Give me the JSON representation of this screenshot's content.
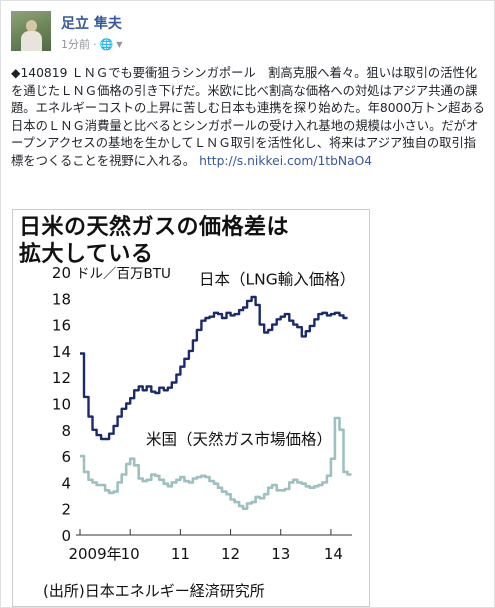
{
  "post": {
    "author": "足立 隼夫",
    "time": "1分前",
    "privacy_icon": "globe-icon",
    "text_main": "◆140819 ＬＮＧでも要衝狙うシンガポール　割高克服へ着々。狙いは取引の活性化を通じたＬＮＧ価格の引き下げだ。米欧に比べ割高な価格への対処はアジア共通の課題。エネルギーコストの上昇に苦しむ日本も連携を探り始めた。年8000万トン超ある日本のＬＮＧ消費量と比べるとシンガポールの受け入れ基地の規模は小さい。だがオープンアクセスの基地を生かしてＬＮＧ取引を活性化し、将来はアジア独自の取引指標をつくることを視野に入れる。",
    "link": "http://s.nikkei.com/1tbNaO4"
  },
  "chart_data": {
    "type": "line",
    "title": "日米の天然ガスの価格差は拡大している",
    "title_line1": "日米の天然ガスの価格差は",
    "title_line2": "拡大している",
    "ylabel": "ドル／百万BTU",
    "ylim": [
      0,
      20
    ],
    "yticks": [
      "0",
      "2",
      "4",
      "6",
      "8",
      "10",
      "12",
      "14",
      "16",
      "18",
      "20"
    ],
    "xticks": [
      "2009年",
      "10",
      "11",
      "12",
      "13",
      "14"
    ],
    "source": "(出所)日本エネルギー経済研究所",
    "grid": false,
    "series": [
      {
        "name": "日本（LNG輸入価格）",
        "color": "#1a2a6c",
        "points": [
          [
            2009.0,
            13.8
          ],
          [
            2009.08,
            10.5
          ],
          [
            2009.17,
            9.0
          ],
          [
            2009.25,
            8.0
          ],
          [
            2009.33,
            7.6
          ],
          [
            2009.42,
            7.3
          ],
          [
            2009.5,
            7.3
          ],
          [
            2009.58,
            7.7
          ],
          [
            2009.67,
            8.3
          ],
          [
            2009.75,
            9.0
          ],
          [
            2009.83,
            9.6
          ],
          [
            2009.92,
            10.0
          ],
          [
            2010.0,
            10.4
          ],
          [
            2010.08,
            11.0
          ],
          [
            2010.17,
            11.3
          ],
          [
            2010.25,
            11.0
          ],
          [
            2010.33,
            11.3
          ],
          [
            2010.42,
            10.9
          ],
          [
            2010.5,
            10.8
          ],
          [
            2010.58,
            11.2
          ],
          [
            2010.67,
            11.0
          ],
          [
            2010.75,
            11.2
          ],
          [
            2010.83,
            11.6
          ],
          [
            2010.92,
            12.2
          ],
          [
            2011.0,
            12.8
          ],
          [
            2011.08,
            13.4
          ],
          [
            2011.17,
            14.0
          ],
          [
            2011.25,
            14.8
          ],
          [
            2011.33,
            15.6
          ],
          [
            2011.42,
            16.3
          ],
          [
            2011.5,
            16.5
          ],
          [
            2011.58,
            16.6
          ],
          [
            2011.67,
            16.9
          ],
          [
            2011.75,
            16.8
          ],
          [
            2011.83,
            16.5
          ],
          [
            2011.92,
            16.9
          ],
          [
            2012.0,
            16.7
          ],
          [
            2012.08,
            16.8
          ],
          [
            2012.17,
            17.1
          ],
          [
            2012.25,
            17.3
          ],
          [
            2012.33,
            17.8
          ],
          [
            2012.42,
            18.1
          ],
          [
            2012.5,
            17.5
          ],
          [
            2012.58,
            16.0
          ],
          [
            2012.67,
            15.4
          ],
          [
            2012.75,
            15.6
          ],
          [
            2012.83,
            16.0
          ],
          [
            2012.92,
            16.4
          ],
          [
            2013.0,
            16.6
          ],
          [
            2013.08,
            16.8
          ],
          [
            2013.17,
            16.3
          ],
          [
            2013.25,
            16.0
          ],
          [
            2013.33,
            15.8
          ],
          [
            2013.42,
            15.1
          ],
          [
            2013.5,
            15.5
          ],
          [
            2013.58,
            15.9
          ],
          [
            2013.67,
            16.4
          ],
          [
            2013.75,
            16.8
          ],
          [
            2013.83,
            16.9
          ],
          [
            2013.92,
            16.7
          ],
          [
            2014.0,
            16.8
          ],
          [
            2014.08,
            16.9
          ],
          [
            2014.17,
            16.7
          ],
          [
            2014.25,
            16.5
          ]
        ]
      },
      {
        "name": "米国（天然ガス市場価格）",
        "color": "#9dc0c0",
        "points": [
          [
            2009.0,
            6.0
          ],
          [
            2009.08,
            4.8
          ],
          [
            2009.17,
            4.2
          ],
          [
            2009.25,
            4.0
          ],
          [
            2009.33,
            3.8
          ],
          [
            2009.42,
            3.8
          ],
          [
            2009.5,
            3.4
          ],
          [
            2009.58,
            3.2
          ],
          [
            2009.67,
            3.3
          ],
          [
            2009.75,
            4.0
          ],
          [
            2009.83,
            4.6
          ],
          [
            2009.92,
            5.4
          ],
          [
            2010.0,
            5.8
          ],
          [
            2010.08,
            5.3
          ],
          [
            2010.17,
            4.3
          ],
          [
            2010.25,
            4.1
          ],
          [
            2010.33,
            4.2
          ],
          [
            2010.42,
            4.6
          ],
          [
            2010.5,
            4.5
          ],
          [
            2010.58,
            4.2
          ],
          [
            2010.67,
            3.9
          ],
          [
            2010.75,
            3.7
          ],
          [
            2010.83,
            4.0
          ],
          [
            2010.92,
            4.2
          ],
          [
            2011.0,
            4.4
          ],
          [
            2011.08,
            4.1
          ],
          [
            2011.17,
            4.0
          ],
          [
            2011.25,
            4.3
          ],
          [
            2011.33,
            4.4
          ],
          [
            2011.42,
            4.5
          ],
          [
            2011.5,
            4.4
          ],
          [
            2011.58,
            4.1
          ],
          [
            2011.67,
            3.9
          ],
          [
            2011.75,
            3.6
          ],
          [
            2011.83,
            3.3
          ],
          [
            2011.92,
            3.1
          ],
          [
            2012.0,
            2.7
          ],
          [
            2012.08,
            2.5
          ],
          [
            2012.17,
            2.2
          ],
          [
            2012.25,
            2.0
          ],
          [
            2012.33,
            2.4
          ],
          [
            2012.42,
            2.5
          ],
          [
            2012.5,
            2.9
          ],
          [
            2012.58,
            2.8
          ],
          [
            2012.67,
            3.1
          ],
          [
            2012.75,
            3.6
          ],
          [
            2012.83,
            3.8
          ],
          [
            2012.92,
            3.4
          ],
          [
            2013.0,
            3.4
          ],
          [
            2013.08,
            3.5
          ],
          [
            2013.17,
            4.0
          ],
          [
            2013.25,
            4.2
          ],
          [
            2013.33,
            4.0
          ],
          [
            2013.42,
            3.9
          ],
          [
            2013.5,
            3.7
          ],
          [
            2013.58,
            3.6
          ],
          [
            2013.67,
            3.7
          ],
          [
            2013.75,
            3.8
          ],
          [
            2013.83,
            4.0
          ],
          [
            2013.92,
            4.5
          ],
          [
            2014.0,
            5.8
          ],
          [
            2014.08,
            8.9
          ],
          [
            2014.17,
            8.0
          ],
          [
            2014.25,
            4.8
          ],
          [
            2014.33,
            4.6
          ]
        ]
      }
    ]
  }
}
